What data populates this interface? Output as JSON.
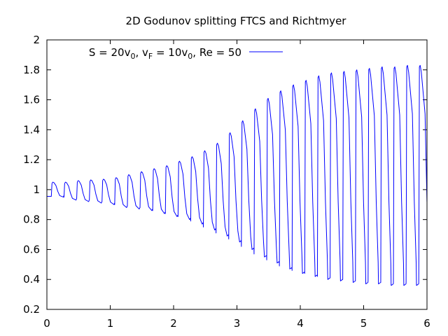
{
  "chart_data": {
    "type": "line",
    "title": "2D Godunov splitting FTCS and Richtmyer",
    "xlabel": "",
    "ylabel": "",
    "xlim": [
      0,
      6
    ],
    "ylim": [
      0.2,
      2
    ],
    "x_ticks": [
      "0",
      "1",
      "2",
      "3",
      "4",
      "5",
      "6"
    ],
    "y_ticks": [
      "0.2",
      "0.4",
      "0.6",
      "0.8",
      "1",
      "1.2",
      "1.4",
      "1.6",
      "1.8",
      "2"
    ],
    "grid": false,
    "legend_position": "top-left",
    "series": [
      {
        "name": "S = 20v0, vF = 10v0, Re = 50",
        "legend_label": {
          "p1": "S = 20v",
          "s1": "0",
          "p2": ", v",
          "s2": "F",
          "p3": " = 10v",
          "s3": "0",
          "p4": ", Re = 50"
        },
        "color": "#0000ff",
        "oscillation": {
          "period": 0.2,
          "x_start": 0,
          "x_end": 6,
          "peak_x": [
            0.08,
            0.28,
            0.48,
            0.68,
            0.88,
            1.08,
            1.28,
            1.48,
            1.68,
            1.88,
            2.08,
            2.28,
            2.48,
            2.68,
            2.88,
            3.08,
            3.28,
            3.48,
            3.68,
            3.88,
            4.08,
            4.28,
            4.48,
            4.68,
            4.88,
            5.08,
            5.28,
            5.48,
            5.68,
            5.88
          ],
          "max_y": [
            1.05,
            1.05,
            1.06,
            1.065,
            1.07,
            1.08,
            1.1,
            1.12,
            1.14,
            1.16,
            1.19,
            1.22,
            1.26,
            1.31,
            1.38,
            1.46,
            1.54,
            1.61,
            1.66,
            1.7,
            1.73,
            1.76,
            1.78,
            1.79,
            1.8,
            1.81,
            1.82,
            1.82,
            1.83,
            1.83
          ],
          "min_y": [
            0.95,
            0.93,
            0.92,
            0.91,
            0.9,
            0.88,
            0.87,
            0.86,
            0.84,
            0.82,
            0.8,
            0.77,
            0.73,
            0.69,
            0.65,
            0.6,
            0.55,
            0.51,
            0.47,
            0.44,
            0.42,
            0.4,
            0.39,
            0.38,
            0.37,
            0.37,
            0.36,
            0.36,
            0.36,
            0.36
          ]
        }
      }
    ]
  }
}
